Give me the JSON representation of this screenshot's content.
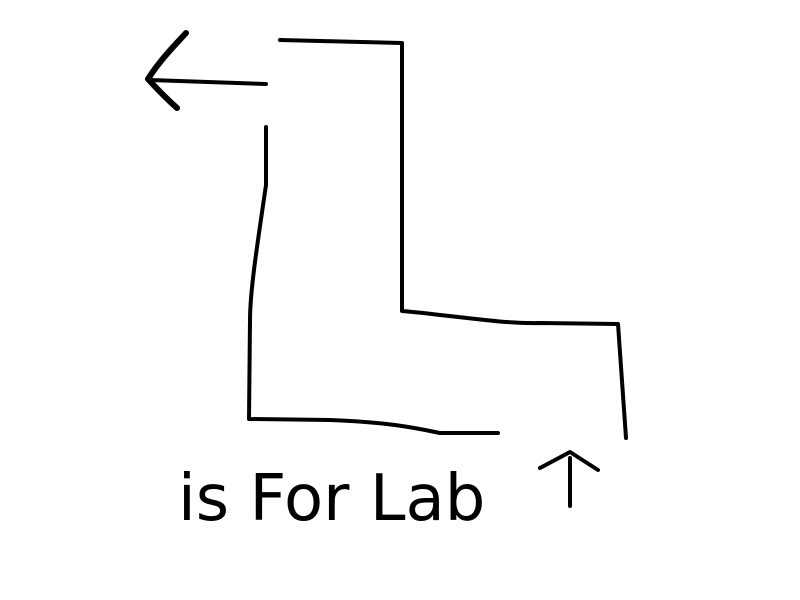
{
  "drawing": {
    "caption": "is For Lab",
    "ink_color": "#000000",
    "background_color": "#ffffff",
    "icons": [
      "arrow-left-icon",
      "arrow-up-icon"
    ]
  }
}
